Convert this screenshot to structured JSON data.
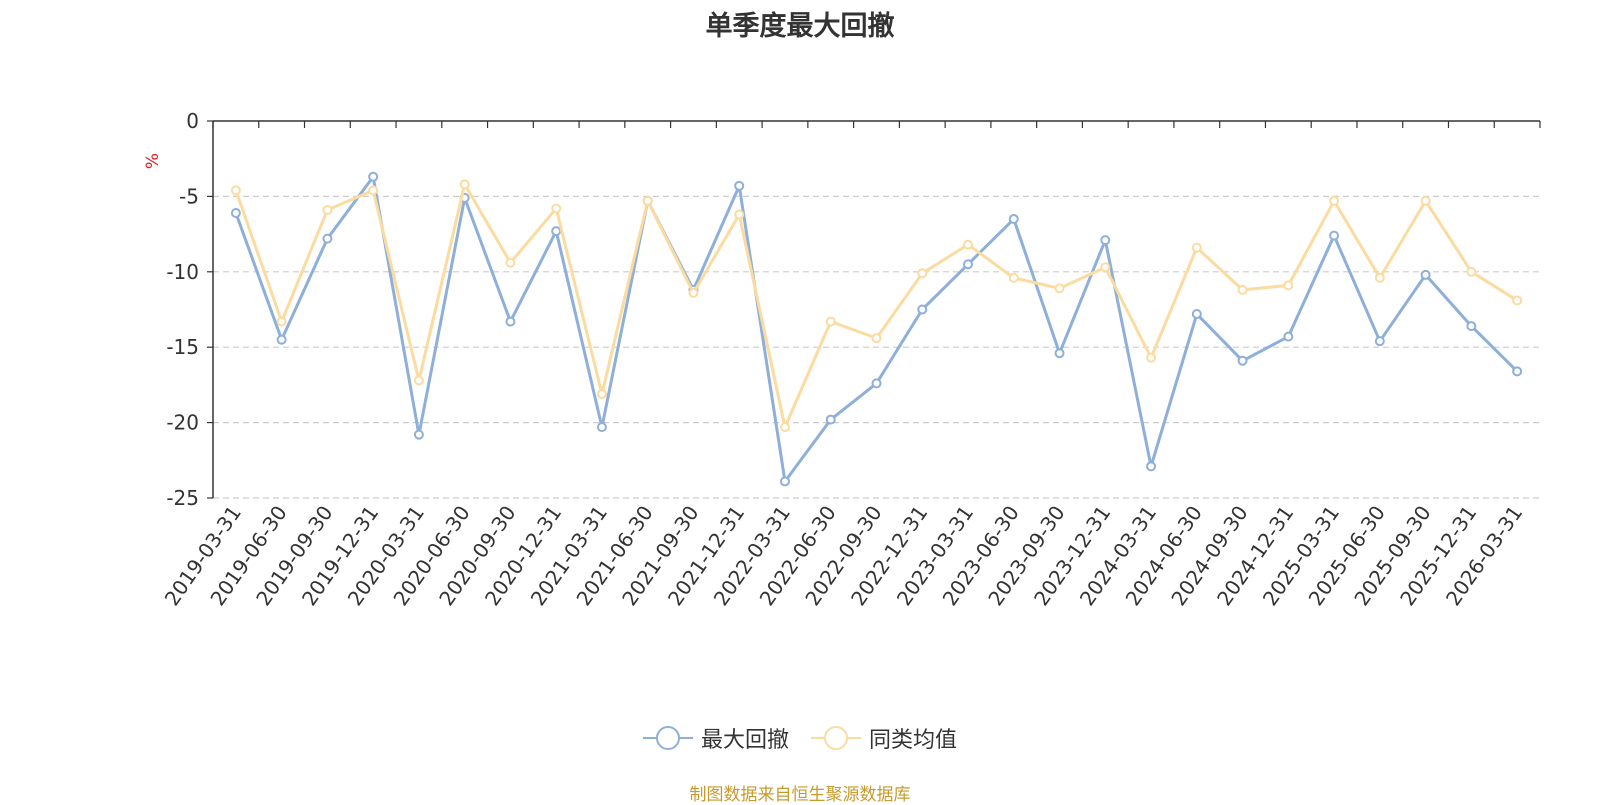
{
  "chart_data": {
    "type": "line",
    "title": "单季度最大回撤",
    "ylabel": "%",
    "xlabel": "",
    "ylim": [
      -25,
      0
    ],
    "yticks": [
      0,
      -5,
      -10,
      -15,
      -20,
      -25
    ],
    "categories": [
      "2019-03-31",
      "2019-06-30",
      "2019-09-30",
      "2019-12-31",
      "2020-03-31",
      "2020-06-30",
      "2020-09-30",
      "2020-12-31",
      "2021-03-31",
      "2021-06-30",
      "2021-09-30",
      "2021-12-31",
      "2022-03-31",
      "2022-06-30",
      "2022-09-30",
      "2022-12-31",
      "2023-03-31",
      "2023-06-30",
      "2023-09-30",
      "2023-12-31",
      "2024-03-31",
      "2024-06-30",
      "2024-09-30",
      "2024-12-31",
      "2025-03-31",
      "2025-06-30",
      "2025-09-30",
      "2025-12-31",
      "2026-03-31"
    ],
    "series": [
      {
        "name": "最大回撤",
        "color": "#8eafd9",
        "values": [
          -6.1,
          -14.5,
          -7.8,
          -3.7,
          -20.8,
          -5.1,
          -13.3,
          -7.3,
          -20.3,
          -5.3,
          -11.2,
          -4.3,
          -23.9,
          -19.8,
          -17.4,
          -12.5,
          -9.5,
          -6.5,
          -15.4,
          -7.9,
          -22.9,
          -12.8,
          -15.9,
          -14.3,
          -7.6,
          -14.6,
          -10.2,
          -13.6,
          -16.6
        ]
      },
      {
        "name": "同类均值",
        "color": "#fbdba0",
        "values": [
          -4.6,
          -13.3,
          -5.9,
          -4.6,
          -17.2,
          -4.2,
          -9.4,
          -5.8,
          -18.1,
          -5.3,
          -11.4,
          -6.2,
          -20.3,
          -13.3,
          -14.4,
          -10.1,
          -8.2,
          -10.4,
          -11.1,
          -9.7,
          -15.7,
          -8.4,
          -11.2,
          -10.9,
          -5.3,
          -10.4,
          -5.3,
          -10.0,
          -11.9
        ]
      }
    ],
    "legend_position": "bottom-center",
    "grid": true
  },
  "source_text": "制图数据来自恒生聚源数据库"
}
